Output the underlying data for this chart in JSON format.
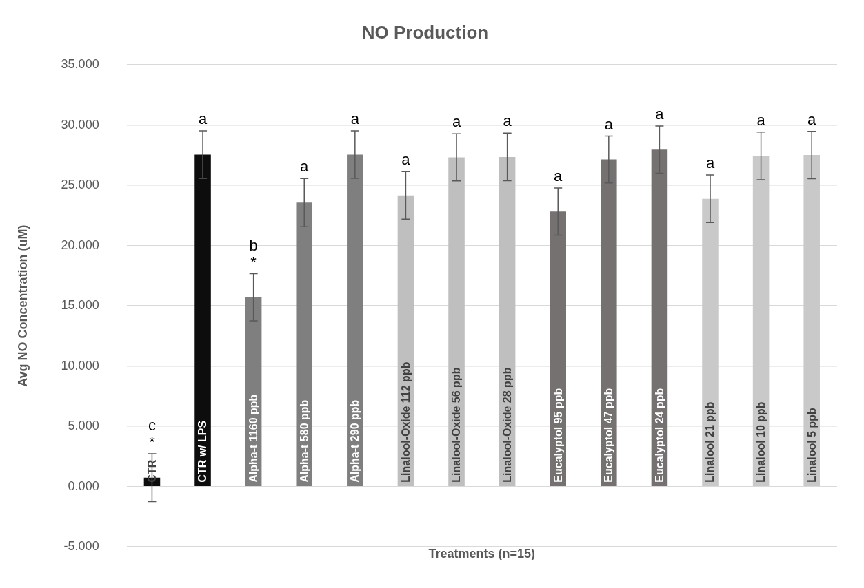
{
  "chart_data": {
    "type": "bar",
    "title": "NO Production",
    "xlabel": "Treatments (n=15)",
    "ylabel": "Avg NO Concentration (uM)",
    "categories": [
      "CTR",
      "CTR w/ LPS",
      "Alpha-t 1160 ppb",
      "Alpha-t 580 ppb",
      "Alpha-t 290 ppb",
      "Linalool-Oxide 112 ppb",
      "Linalool-Oxide 56 ppb",
      "Linalool-Oxide 28 ppb",
      "Eucalyptol 95 ppb",
      "Eucalyptol 47 ppb",
      "Eucalyptol 24 ppb",
      "Linalool 21 ppb",
      "Linalool 10 ppb",
      "Linalool 5 ppb"
    ],
    "values": [
      0.74,
      27.55,
      15.71,
      23.57,
      27.55,
      24.17,
      27.33,
      27.36,
      22.83,
      27.15,
      27.97,
      23.89,
      27.45,
      27.52
    ],
    "errors": [
      1.98,
      1.97,
      1.96,
      2.0,
      1.97,
      1.97,
      1.96,
      1.98,
      1.96,
      1.95,
      1.96,
      1.98,
      1.98,
      1.96
    ],
    "colors": [
      "#0d0d0d",
      "#0d0d0d",
      "#7f7f7f",
      "#7f7f7f",
      "#7f7f7f",
      "#bfbfbf",
      "#bfbfbf",
      "#bfbfbf",
      "#767171",
      "#767171",
      "#767171",
      "#c9c9c9",
      "#c9c9c9",
      "#c9c9c9"
    ],
    "ylim": [
      -5,
      35
    ],
    "yticks": [
      {
        "value": -5,
        "label": "-5.000"
      },
      {
        "value": 0,
        "label": "0.000"
      },
      {
        "value": 5,
        "label": "5.000"
      },
      {
        "value": 10,
        "label": "10.000"
      },
      {
        "value": 15,
        "label": "15.000"
      },
      {
        "value": 20,
        "label": "20.000"
      },
      {
        "value": 25,
        "label": "25.000"
      },
      {
        "value": 30,
        "label": "30.000"
      },
      {
        "value": 35,
        "label": "35.000"
      }
    ],
    "grid": "y",
    "legend": false,
    "annotations": [
      {
        "text": "c\n*",
        "x": "CTR",
        "y": 0.74
      },
      {
        "text": "a",
        "x": "CTR w/ LPS",
        "y": 27.55
      },
      {
        "text": "b\n*",
        "x": "Alpha-t 1160 ppb",
        "y": 15.71
      },
      {
        "text": "a",
        "x": "Alpha-t 580 ppb",
        "y": 23.57
      },
      {
        "text": "a",
        "x": "Alpha-t 290 ppb",
        "y": 27.55
      },
      {
        "text": "a",
        "x": "Linalool-Oxide 112 ppb",
        "y": 24.17
      },
      {
        "text": "a",
        "x": "Linalool-Oxide 56 ppb",
        "y": 27.33
      },
      {
        "text": "a",
        "x": "Linalool-Oxide 28 ppb",
        "y": 27.36
      },
      {
        "text": "a",
        "x": "Eucalyptol 95 ppb",
        "y": 22.83
      },
      {
        "text": "a",
        "x": "Eucalyptol 47 ppb",
        "y": 27.15
      },
      {
        "text": "a",
        "x": "Eucalyptol 24 ppb",
        "y": 27.97
      },
      {
        "text": "a",
        "x": "Linalool 21 ppb",
        "y": 23.89
      },
      {
        "text": "a",
        "x": "Linalool 10 ppb",
        "y": 27.45
      },
      {
        "text": "a",
        "x": "Linalool 5 ppb",
        "y": 27.52
      }
    ]
  }
}
